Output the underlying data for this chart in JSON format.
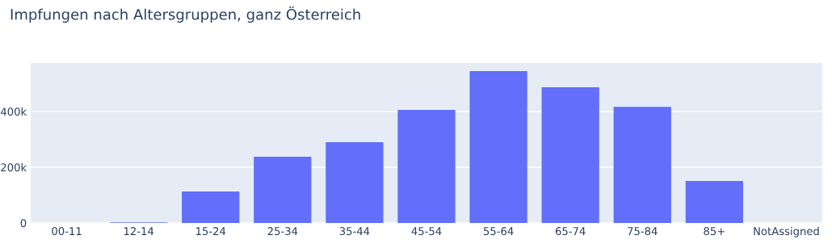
{
  "chart_data": {
    "type": "bar",
    "title": "Impfungen nach Altersgruppen, ganz Österreich",
    "categories": [
      "00-11",
      "12-14",
      "15-24",
      "25-34",
      "35-44",
      "45-54",
      "55-64",
      "65-74",
      "75-84",
      "85+",
      "NotAssigned"
    ],
    "values": [
      null,
      2000,
      113000,
      238000,
      290000,
      406000,
      545000,
      487000,
      417000,
      151000,
      null
    ],
    "color": "#636efa",
    "ylim": [
      0,
      574000
    ],
    "yticks": [
      {
        "value": 0,
        "label": "0"
      },
      {
        "value": 200000,
        "label": "200k"
      },
      {
        "value": 400000,
        "label": "400k"
      }
    ],
    "grid": "y"
  }
}
